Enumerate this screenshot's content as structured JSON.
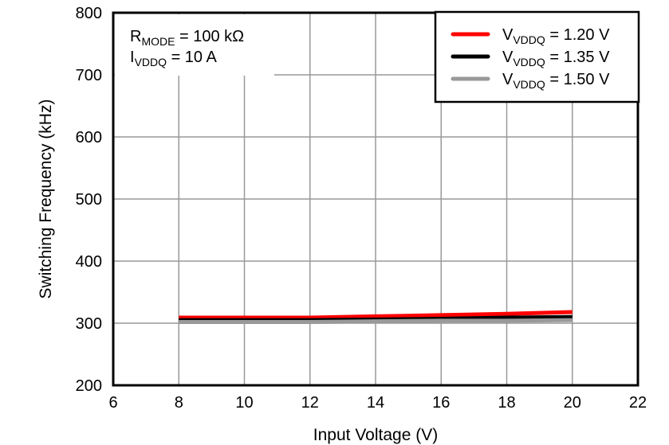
{
  "chart_data": {
    "type": "line",
    "title": "",
    "xlabel": "Input Voltage (V)",
    "ylabel": "Switching Frequency (kHz)",
    "xlim": [
      6,
      22
    ],
    "ylim": [
      200,
      800
    ],
    "xticks": [
      6,
      8,
      10,
      12,
      14,
      16,
      18,
      20,
      22
    ],
    "yticks": [
      200,
      300,
      400,
      500,
      600,
      700,
      800
    ],
    "grid": true,
    "legend_placement": "top-right",
    "annotation": {
      "r_main": "R",
      "r_sub": "MODE",
      "r_rest": " = 100 kΩ",
      "i_main": "I",
      "i_sub": "VDDQ",
      "i_rest": " = 10 A"
    },
    "series": [
      {
        "name": "VVDDQ = 1.20 V",
        "label_main": "V",
        "label_sub": "VDDQ",
        "label_rest": " = 1.20 V",
        "color": "#ff0000",
        "x": [
          8,
          10,
          12,
          14,
          16,
          18,
          20
        ],
        "y": [
          309,
          309,
          309,
          311,
          313,
          315,
          318
        ]
      },
      {
        "name": "VVDDQ = 1.35 V",
        "label_main": "V",
        "label_sub": "VDDQ",
        "label_rest": " = 1.35 V",
        "color": "#000000",
        "x": [
          8,
          10,
          12,
          14,
          16,
          18,
          20
        ],
        "y": [
          305,
          305,
          305,
          306,
          307,
          309,
          310
        ]
      },
      {
        "name": "VVDDQ = 1.50 V",
        "label_main": "V",
        "label_sub": "VDDQ",
        "label_rest": " = 1.50 V",
        "color": "#999999",
        "x": [
          8,
          10,
          12,
          14,
          16,
          18,
          20
        ],
        "y": [
          302,
          302,
          302,
          303,
          304,
          304,
          305
        ]
      }
    ]
  }
}
